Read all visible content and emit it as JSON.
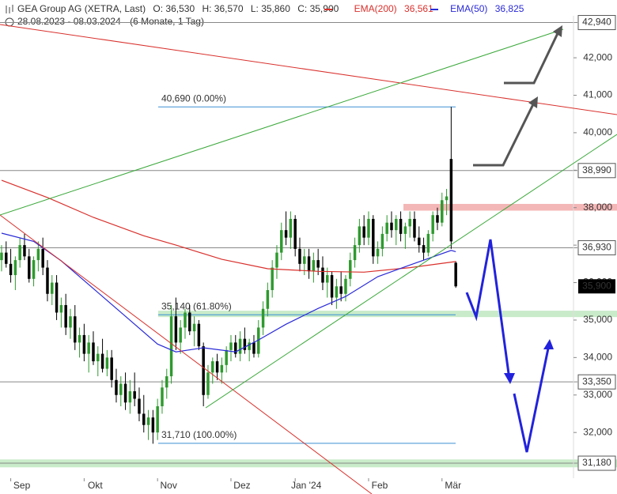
{
  "header": {
    "title": "GEA Group AG (XETRA, Last)",
    "ohlc": [
      "O: 36,530",
      "H: 36,570",
      "L: 35,860",
      "C: 35,900"
    ],
    "ema200_name": "EMA(200)",
    "ema200_value": "36,561",
    "ema50_name": "EMA(50)",
    "ema50_value": "36,825",
    "range": "28.08.2023 - 08.03.2024",
    "period": "(6 Monate, 1 Tag)"
  },
  "chart_data": {
    "type": "candlestick",
    "up_color": "#2e9a2e",
    "down_color": "#000000",
    "xlim": [
      -0.34,
      124.66
    ],
    "ylim": [
      30.78,
      43.12
    ],
    "xticks": [
      {
        "value": 2,
        "label": "Sep"
      },
      {
        "value": 18,
        "label": "Okt"
      },
      {
        "value": 34,
        "label": "Nov"
      },
      {
        "value": 50,
        "label": "Dez"
      },
      {
        "value": 64,
        "label": "Jan '24"
      },
      {
        "value": 80,
        "label": "Feb"
      },
      {
        "value": 96,
        "label": "Mär"
      }
    ],
    "yticks": [
      {
        "value": 32,
        "label": "32,000"
      },
      {
        "value": 33,
        "label": "33,000"
      },
      {
        "value": 34,
        "label": "34,000"
      },
      {
        "value": 35,
        "label": "35,000"
      },
      {
        "value": 36,
        "label": "36,000"
      },
      {
        "value": 37,
        "label": "37,000"
      },
      {
        "value": 38,
        "label": "38,000"
      },
      {
        "value": 39,
        "label": "39,000"
      },
      {
        "value": 40,
        "label": "40,000"
      },
      {
        "value": 41,
        "label": "41,000"
      },
      {
        "value": 42,
        "label": "42,000"
      }
    ],
    "candles": [
      [
        36.6,
        37.0,
        36.3,
        36.8
      ],
      [
        36.8,
        37.1,
        36.4,
        36.5
      ],
      [
        36.5,
        36.9,
        36.0,
        36.2
      ],
      [
        36.2,
        36.7,
        35.8,
        36.6
      ],
      [
        36.6,
        37.2,
        36.4,
        37.0
      ],
      [
        37.0,
        37.3,
        36.6,
        36.7
      ],
      [
        36.7,
        36.9,
        36.0,
        36.1
      ],
      [
        36.1,
        36.7,
        35.9,
        36.6
      ],
      [
        36.6,
        37.1,
        36.3,
        36.9
      ],
      [
        36.9,
        37.2,
        36.2,
        36.4
      ],
      [
        36.4,
        36.6,
        35.5,
        35.7
      ],
      [
        35.7,
        36.2,
        35.4,
        36.0
      ],
      [
        36.0,
        36.2,
        35.0,
        35.2
      ],
      [
        35.2,
        35.6,
        34.8,
        35.4
      ],
      [
        35.4,
        35.7,
        34.6,
        34.8
      ],
      [
        34.8,
        35.3,
        34.5,
        35.1
      ],
      [
        35.1,
        35.4,
        34.2,
        34.4
      ],
      [
        34.4,
        34.8,
        34.0,
        34.6
      ],
      [
        34.6,
        34.9,
        33.9,
        34.1
      ],
      [
        34.1,
        34.6,
        33.6,
        34.4
      ],
      [
        34.4,
        34.7,
        33.8,
        33.9
      ],
      [
        33.9,
        34.3,
        33.5,
        34.1
      ],
      [
        34.1,
        34.5,
        33.6,
        33.7
      ],
      [
        33.7,
        34.2,
        33.5,
        34.0
      ],
      [
        34.0,
        34.2,
        33.2,
        33.4
      ],
      [
        33.4,
        33.7,
        32.8,
        33.0
      ],
      [
        33.0,
        33.5,
        32.7,
        33.3
      ],
      [
        33.3,
        33.6,
        32.6,
        32.8
      ],
      [
        32.8,
        33.4,
        32.5,
        33.1
      ],
      [
        33.1,
        33.6,
        32.7,
        32.9
      ],
      [
        32.9,
        33.2,
        32.3,
        32.5
      ],
      [
        32.5,
        33.0,
        32.0,
        32.2
      ],
      [
        32.2,
        32.6,
        31.8,
        32.4
      ],
      [
        32.4,
        32.6,
        31.7,
        32.0
      ],
      [
        32.0,
        32.9,
        31.8,
        32.7
      ],
      [
        32.7,
        33.4,
        32.5,
        33.2
      ],
      [
        33.2,
        33.7,
        32.9,
        33.5
      ],
      [
        33.5,
        35.4,
        33.3,
        35.1
      ],
      [
        35.1,
        35.6,
        34.2,
        34.4
      ],
      [
        34.4,
        35.0,
        34.1,
        34.8
      ],
      [
        34.8,
        35.3,
        34.5,
        35.2
      ],
      [
        35.2,
        35.4,
        34.6,
        34.7
      ],
      [
        34.7,
        35.1,
        34.3,
        34.9
      ],
      [
        34.9,
        35.0,
        34.2,
        34.3
      ],
      [
        34.3,
        34.4,
        32.7,
        33.0
      ],
      [
        33.0,
        33.8,
        32.9,
        33.6
      ],
      [
        33.6,
        34.0,
        33.3,
        33.9
      ],
      [
        33.9,
        34.1,
        33.4,
        33.6
      ],
      [
        33.6,
        34.0,
        33.3,
        33.8
      ],
      [
        33.8,
        34.3,
        33.6,
        34.2
      ],
      [
        34.2,
        34.6,
        33.9,
        34.4
      ],
      [
        34.4,
        34.6,
        34.0,
        34.1
      ],
      [
        34.1,
        34.7,
        33.9,
        34.5
      ],
      [
        34.5,
        34.8,
        34.1,
        34.2
      ],
      [
        34.2,
        34.5,
        33.9,
        34.4
      ],
      [
        34.4,
        34.6,
        34.0,
        34.1
      ],
      [
        34.1,
        35.0,
        34.0,
        34.8
      ],
      [
        34.8,
        35.5,
        34.6,
        35.3
      ],
      [
        35.3,
        36.0,
        35.1,
        35.8
      ],
      [
        35.8,
        36.6,
        35.6,
        36.4
      ],
      [
        36.4,
        37.0,
        36.1,
        36.8
      ],
      [
        36.8,
        37.6,
        36.6,
        37.4
      ],
      [
        37.4,
        37.9,
        37.0,
        37.2
      ],
      [
        37.2,
        37.9,
        36.9,
        37.7
      ],
      [
        37.7,
        37.8,
        36.7,
        36.9
      ],
      [
        36.9,
        37.2,
        36.3,
        36.5
      ],
      [
        36.5,
        36.9,
        36.2,
        36.7
      ],
      [
        36.7,
        36.9,
        36.1,
        36.3
      ],
      [
        36.3,
        36.8,
        36.0,
        36.6
      ],
      [
        36.6,
        36.9,
        36.2,
        36.4
      ],
      [
        36.4,
        36.7,
        35.8,
        36.0
      ],
      [
        36.0,
        36.4,
        35.6,
        36.2
      ],
      [
        36.2,
        36.3,
        35.4,
        35.6
      ],
      [
        35.6,
        36.1,
        35.3,
        35.9
      ],
      [
        35.9,
        36.3,
        35.5,
        35.7
      ],
      [
        35.7,
        36.2,
        35.5,
        36.1
      ],
      [
        36.1,
        36.8,
        35.9,
        36.6
      ],
      [
        36.6,
        37.2,
        36.4,
        37.0
      ],
      [
        37.0,
        37.7,
        36.8,
        37.5
      ],
      [
        37.5,
        37.8,
        37.0,
        37.2
      ],
      [
        37.2,
        37.9,
        37.0,
        37.7
      ],
      [
        37.7,
        37.8,
        36.5,
        36.7
      ],
      [
        36.7,
        37.1,
        36.5,
        36.9
      ],
      [
        36.9,
        37.5,
        36.7,
        37.3
      ],
      [
        37.3,
        37.8,
        37.1,
        37.6
      ],
      [
        37.6,
        37.9,
        37.2,
        37.4
      ],
      [
        37.4,
        37.8,
        37.0,
        37.7
      ],
      [
        37.7,
        37.9,
        37.1,
        37.3
      ],
      [
        37.3,
        37.6,
        36.9,
        37.5
      ],
      [
        37.5,
        37.9,
        37.2,
        37.7
      ],
      [
        37.7,
        37.9,
        37.1,
        37.2
      ],
      [
        37.2,
        37.5,
        36.8,
        37.0
      ],
      [
        37.0,
        37.2,
        36.6,
        36.8
      ],
      [
        36.8,
        37.4,
        36.7,
        37.3
      ],
      [
        37.3,
        37.9,
        37.1,
        37.8
      ],
      [
        37.8,
        38.0,
        37.4,
        37.6
      ],
      [
        37.6,
        38.4,
        37.5,
        38.2
      ],
      [
        38.2,
        38.5,
        37.8,
        38.3
      ],
      [
        39.3,
        40.69,
        36.9,
        37.1
      ],
      [
        36.53,
        36.57,
        35.86,
        35.9
      ]
    ],
    "lines": [
      {
        "name": "EMA(200)",
        "color": "#d9302c",
        "x": [
          0,
          10,
          20,
          31,
          38,
          48,
          58,
          69,
          79,
          89,
          99
        ],
        "values": [
          38.73,
          38.27,
          37.74,
          37.25,
          37.0,
          36.62,
          36.37,
          36.3,
          36.28,
          36.4,
          36.561
        ]
      },
      {
        "name": "EMA(50)",
        "color": "#2a2ad8",
        "x": [
          0,
          7,
          13,
          20,
          27,
          34,
          38,
          44,
          51,
          56,
          62,
          69,
          75,
          82,
          89,
          98,
          99
        ],
        "values": [
          37.32,
          37.1,
          36.58,
          35.84,
          35.1,
          34.36,
          34.15,
          34.26,
          34.15,
          34.47,
          34.89,
          35.31,
          35.63,
          36.16,
          36.47,
          36.86,
          36.825
        ]
      }
    ],
    "zones": [
      {
        "from": 37.92,
        "to": 38.1,
        "color": "#f2aaaa",
        "x_start": 510
      },
      {
        "from": 35.08,
        "to": 35.25,
        "color": "#bfe8bf",
        "x_start": 200
      },
      {
        "from": 31.07,
        "to": 31.28,
        "color": "#bfe8bf",
        "x_start": 0
      }
    ],
    "fib": [
      {
        "value": 40.69,
        "label": "40,690 (0.00%)"
      },
      {
        "value": 35.14,
        "label": "35,140 (61.80%)"
      },
      {
        "value": 31.71,
        "label": "31,710 (100.00%)"
      }
    ],
    "levels": [
      {
        "value": 42.94,
        "label": "42,940"
      },
      {
        "value": 38.99,
        "label": "38,990"
      },
      {
        "value": 36.93,
        "label": "36,930"
      },
      {
        "value": 33.35,
        "label": "33,350"
      },
      {
        "value": 31.18,
        "label": "31,180"
      }
    ],
    "last_price": {
      "value": 35.9,
      "label": "35,900"
    }
  }
}
